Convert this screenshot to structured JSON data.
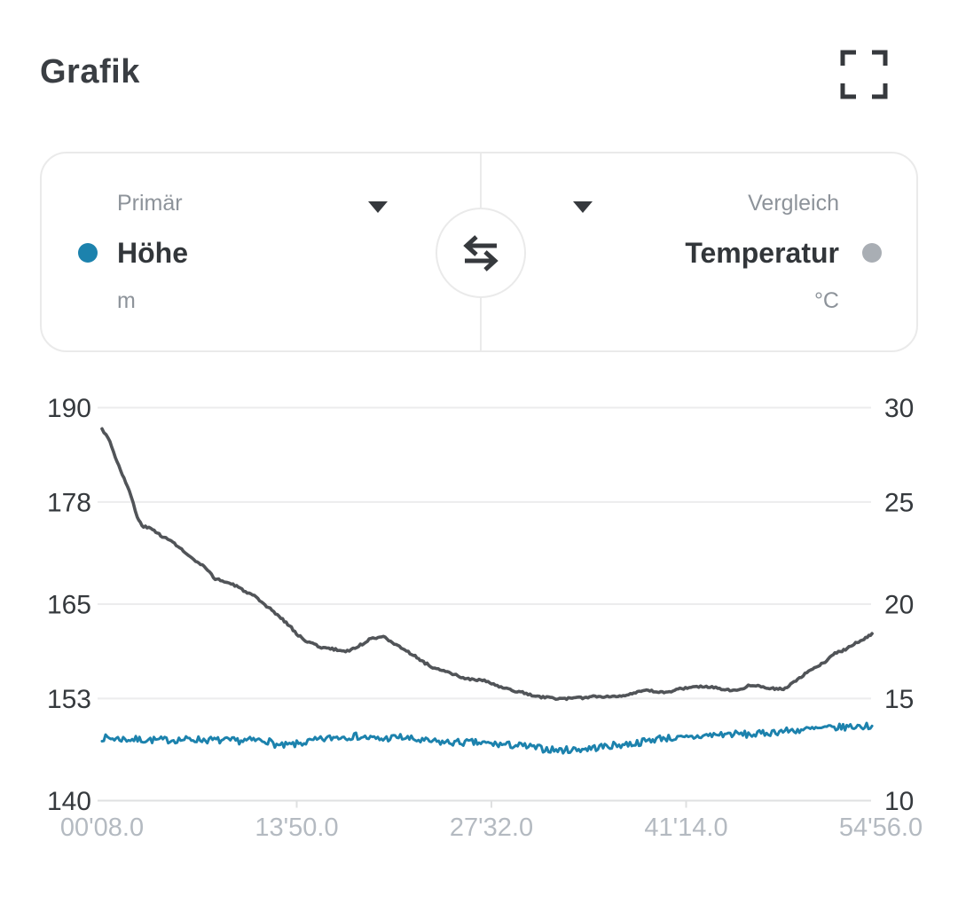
{
  "header": {
    "title": "Grafik"
  },
  "selector": {
    "primary": {
      "label": "Primär",
      "metric": "Höhe",
      "unit": "m",
      "dot_color": "#1c82ad"
    },
    "comparison": {
      "label": "Vergleich",
      "metric": "Temperatur",
      "unit": "°C",
      "dot_color": "#a9aeb4"
    }
  },
  "colors": {
    "accent_blue": "#1c82ad",
    "line_gray": "#515458",
    "dot_gray": "#a9aeb4",
    "grid": "#ececed",
    "axis_line": "#dfe0e1",
    "tick_text": "#35393d",
    "x_label_text": "#b4bac1",
    "icon_dark": "#36393d"
  },
  "chart_data": {
    "type": "line",
    "title": "Grafik",
    "x_axis": {
      "tick_labels": [
        "00'08.0",
        "13'50.0",
        "27'32.0",
        "41'14.0",
        "54'56.0"
      ],
      "tick_times_s": [
        8,
        830,
        1652,
        2474,
        3296
      ],
      "range_s": [
        8,
        3296
      ]
    },
    "left_axis": {
      "label": "Höhe (m)",
      "ticks": [
        190,
        178,
        165,
        153,
        140
      ],
      "range": [
        140,
        190
      ]
    },
    "right_axis": {
      "label": "Temperatur (°C)",
      "ticks": [
        30,
        25,
        20,
        15,
        10
      ],
      "range": [
        10,
        30
      ]
    },
    "grid": true,
    "legend_position": "selector-card",
    "series": [
      {
        "name": "Temperatur",
        "unit": "°C",
        "axis": "right",
        "color": "#515458",
        "stroke_width": 3.6,
        "noise_amplitude": 0.055,
        "noise_seed": 3,
        "points": [
          [
            8,
            28.9
          ],
          [
            34,
            28.5
          ],
          [
            64,
            27.5
          ],
          [
            101,
            26.4
          ],
          [
            131,
            25.5
          ],
          [
            157,
            24.4
          ],
          [
            176,
            24.0
          ],
          [
            221,
            23.8
          ],
          [
            270,
            23.4
          ],
          [
            314,
            23.1
          ],
          [
            389,
            22.3
          ],
          [
            438,
            21.9
          ],
          [
            486,
            21.3
          ],
          [
            561,
            21.0
          ],
          [
            651,
            20.4
          ],
          [
            688,
            20.0
          ],
          [
            725,
            19.7
          ],
          [
            763,
            19.3
          ],
          [
            800,
            18.9
          ],
          [
            837,
            18.4
          ],
          [
            875,
            18.1
          ],
          [
            935,
            17.8
          ],
          [
            987,
            17.7
          ],
          [
            1036,
            17.6
          ],
          [
            1084,
            17.8
          ],
          [
            1136,
            18.2
          ],
          [
            1196,
            18.4
          ],
          [
            1249,
            17.9
          ],
          [
            1286,
            17.7
          ],
          [
            1323,
            17.4
          ],
          [
            1372,
            17.0
          ],
          [
            1420,
            16.7
          ],
          [
            1473,
            16.5
          ],
          [
            1547,
            16.2
          ],
          [
            1622,
            16.1
          ],
          [
            1708,
            15.7
          ],
          [
            1783,
            15.5
          ],
          [
            1839,
            15.3
          ],
          [
            1932,
            15.2
          ],
          [
            2007,
            15.2
          ],
          [
            2082,
            15.3
          ],
          [
            2156,
            15.3
          ],
          [
            2231,
            15.4
          ],
          [
            2306,
            15.6
          ],
          [
            2381,
            15.5
          ],
          [
            2455,
            15.7
          ],
          [
            2511,
            15.8
          ],
          [
            2567,
            15.8
          ],
          [
            2623,
            15.7
          ],
          [
            2680,
            15.6
          ],
          [
            2728,
            15.8
          ],
          [
            2754,
            15.9
          ],
          [
            2799,
            15.8
          ],
          [
            2848,
            15.7
          ],
          [
            2892,
            15.7
          ],
          [
            2915,
            15.9
          ],
          [
            2960,
            16.3
          ],
          [
            3008,
            16.7
          ],
          [
            3053,
            17.0
          ],
          [
            3102,
            17.5
          ],
          [
            3147,
            17.7
          ],
          [
            3176,
            17.9
          ],
          [
            3203,
            18.1
          ],
          [
            3232,
            18.3
          ],
          [
            3259,
            18.5
          ]
        ]
      },
      {
        "name": "Höhe",
        "unit": "m",
        "axis": "left",
        "color": "#1c82ad",
        "stroke_width": 3,
        "noise_amplitude": 0.45,
        "noise_seed": 7,
        "points": [
          [
            8,
            148.0
          ],
          [
            120,
            147.8
          ],
          [
            250,
            147.7
          ],
          [
            400,
            147.8
          ],
          [
            550,
            147.6
          ],
          [
            700,
            147.7
          ],
          [
            760,
            146.9
          ],
          [
            830,
            147.2
          ],
          [
            900,
            147.6
          ],
          [
            1000,
            148.1
          ],
          [
            1080,
            148.2
          ],
          [
            1180,
            147.8
          ],
          [
            1260,
            148.1
          ],
          [
            1360,
            147.6
          ],
          [
            1460,
            147.4
          ],
          [
            1570,
            147.4
          ],
          [
            1660,
            147.2
          ],
          [
            1770,
            147.0
          ],
          [
            1870,
            146.6
          ],
          [
            1940,
            146.4
          ],
          [
            2050,
            146.6
          ],
          [
            2160,
            147.0
          ],
          [
            2260,
            147.3
          ],
          [
            2370,
            148.0
          ],
          [
            2460,
            147.9
          ],
          [
            2560,
            148.3
          ],
          [
            2660,
            148.5
          ],
          [
            2760,
            148.4
          ],
          [
            2860,
            148.8
          ],
          [
            2960,
            149.0
          ],
          [
            3060,
            149.2
          ],
          [
            3160,
            149.4
          ],
          [
            3259,
            149.5
          ]
        ]
      }
    ]
  }
}
